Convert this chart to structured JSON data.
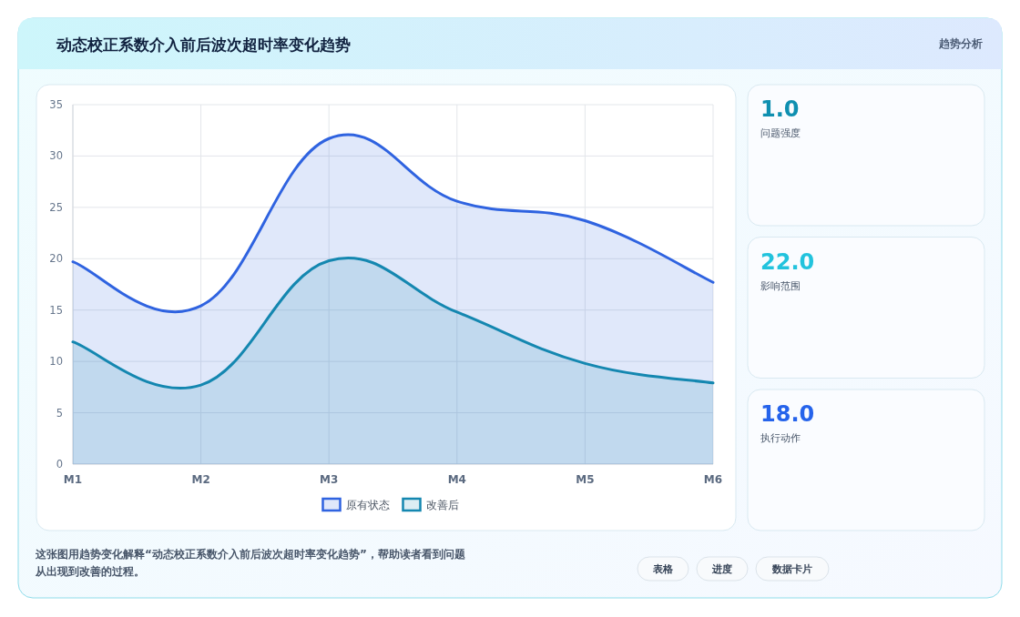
{
  "chart_data": [
    {
      "type": "area",
      "title": "动态校正系数介入前后波次超时率变化趋势",
      "categories": [
        "M1",
        "M2",
        "M3",
        "M4",
        "M5",
        "M6"
      ],
      "series": [
        {
          "name": "原有状态",
          "color": "#2f63e0",
          "values": [
            19.7,
            15.4,
            31.7,
            25.6,
            23.7,
            17.7
          ]
        },
        {
          "name": "改善后",
          "color": "#1487b0",
          "values": [
            11.9,
            7.7,
            19.8,
            14.8,
            9.8,
            7.9
          ]
        }
      ],
      "ylim": [
        0,
        35
      ],
      "yticks": [
        0,
        5,
        10,
        15,
        20,
        25,
        30,
        35
      ],
      "grid": true,
      "legend": "bottom",
      "annotations": [
        "这张图用趋势变化解释“动态校正系数介入前后波次超时率变化趋势”，帮助读者看到问题从出现到改善的过程。",
        "表格",
        "进度",
        "数据卡片"
      ]
    },
    {
      "type": "other",
      "title": "趋势分析",
      "annotations": [
        "1.0",
        "问题强度",
        "22.0",
        "影响范围",
        "18.0",
        "执行动作"
      ]
    }
  ]
}
